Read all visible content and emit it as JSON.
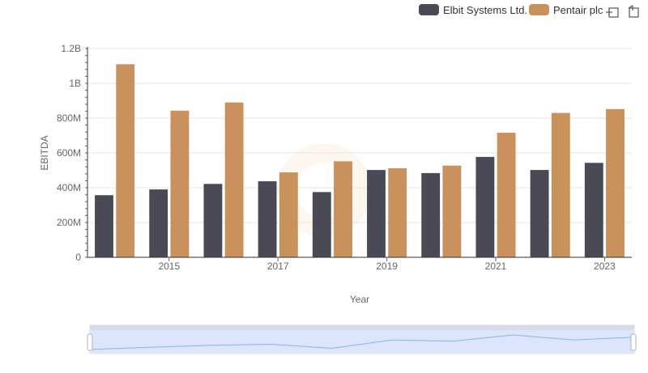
{
  "chart_data": {
    "type": "bar",
    "title": "",
    "xlabel": "Year",
    "ylabel": "EBITDA",
    "categories": [
      "2014",
      "2015",
      "2016",
      "2017",
      "2018",
      "2019",
      "2020",
      "2021",
      "2022",
      "2023"
    ],
    "x_tick_labels": [
      "2015",
      "2017",
      "2019",
      "2021",
      "2023"
    ],
    "y_tick_labels": [
      "0",
      "200M",
      "400M",
      "600M",
      "800M",
      "1B",
      "1.2B"
    ],
    "ylim": [
      0,
      1200000000
    ],
    "grid": true,
    "legend_position": "top-right",
    "series": [
      {
        "name": "Elbit Systems Ltd.",
        "color": "#4a4a56",
        "values": [
          357000000,
          390000000,
          422000000,
          437000000,
          375000000,
          502000000,
          484000000,
          577000000,
          502000000,
          543000000
        ]
      },
      {
        "name": "Pentair plc",
        "color": "#c9915c",
        "values": [
          1110000000,
          843000000,
          890000000,
          488000000,
          552000000,
          512000000,
          527000000,
          716000000,
          830000000,
          852000000
        ]
      }
    ]
  },
  "toolbar": {
    "icons": [
      "zoom-icon",
      "restore-icon"
    ]
  },
  "colors": {
    "grid": "#e6e6e6",
    "axis": "#333333",
    "navigator_fill": "#dbe6fb",
    "navigator_line": "#7799dd"
  }
}
